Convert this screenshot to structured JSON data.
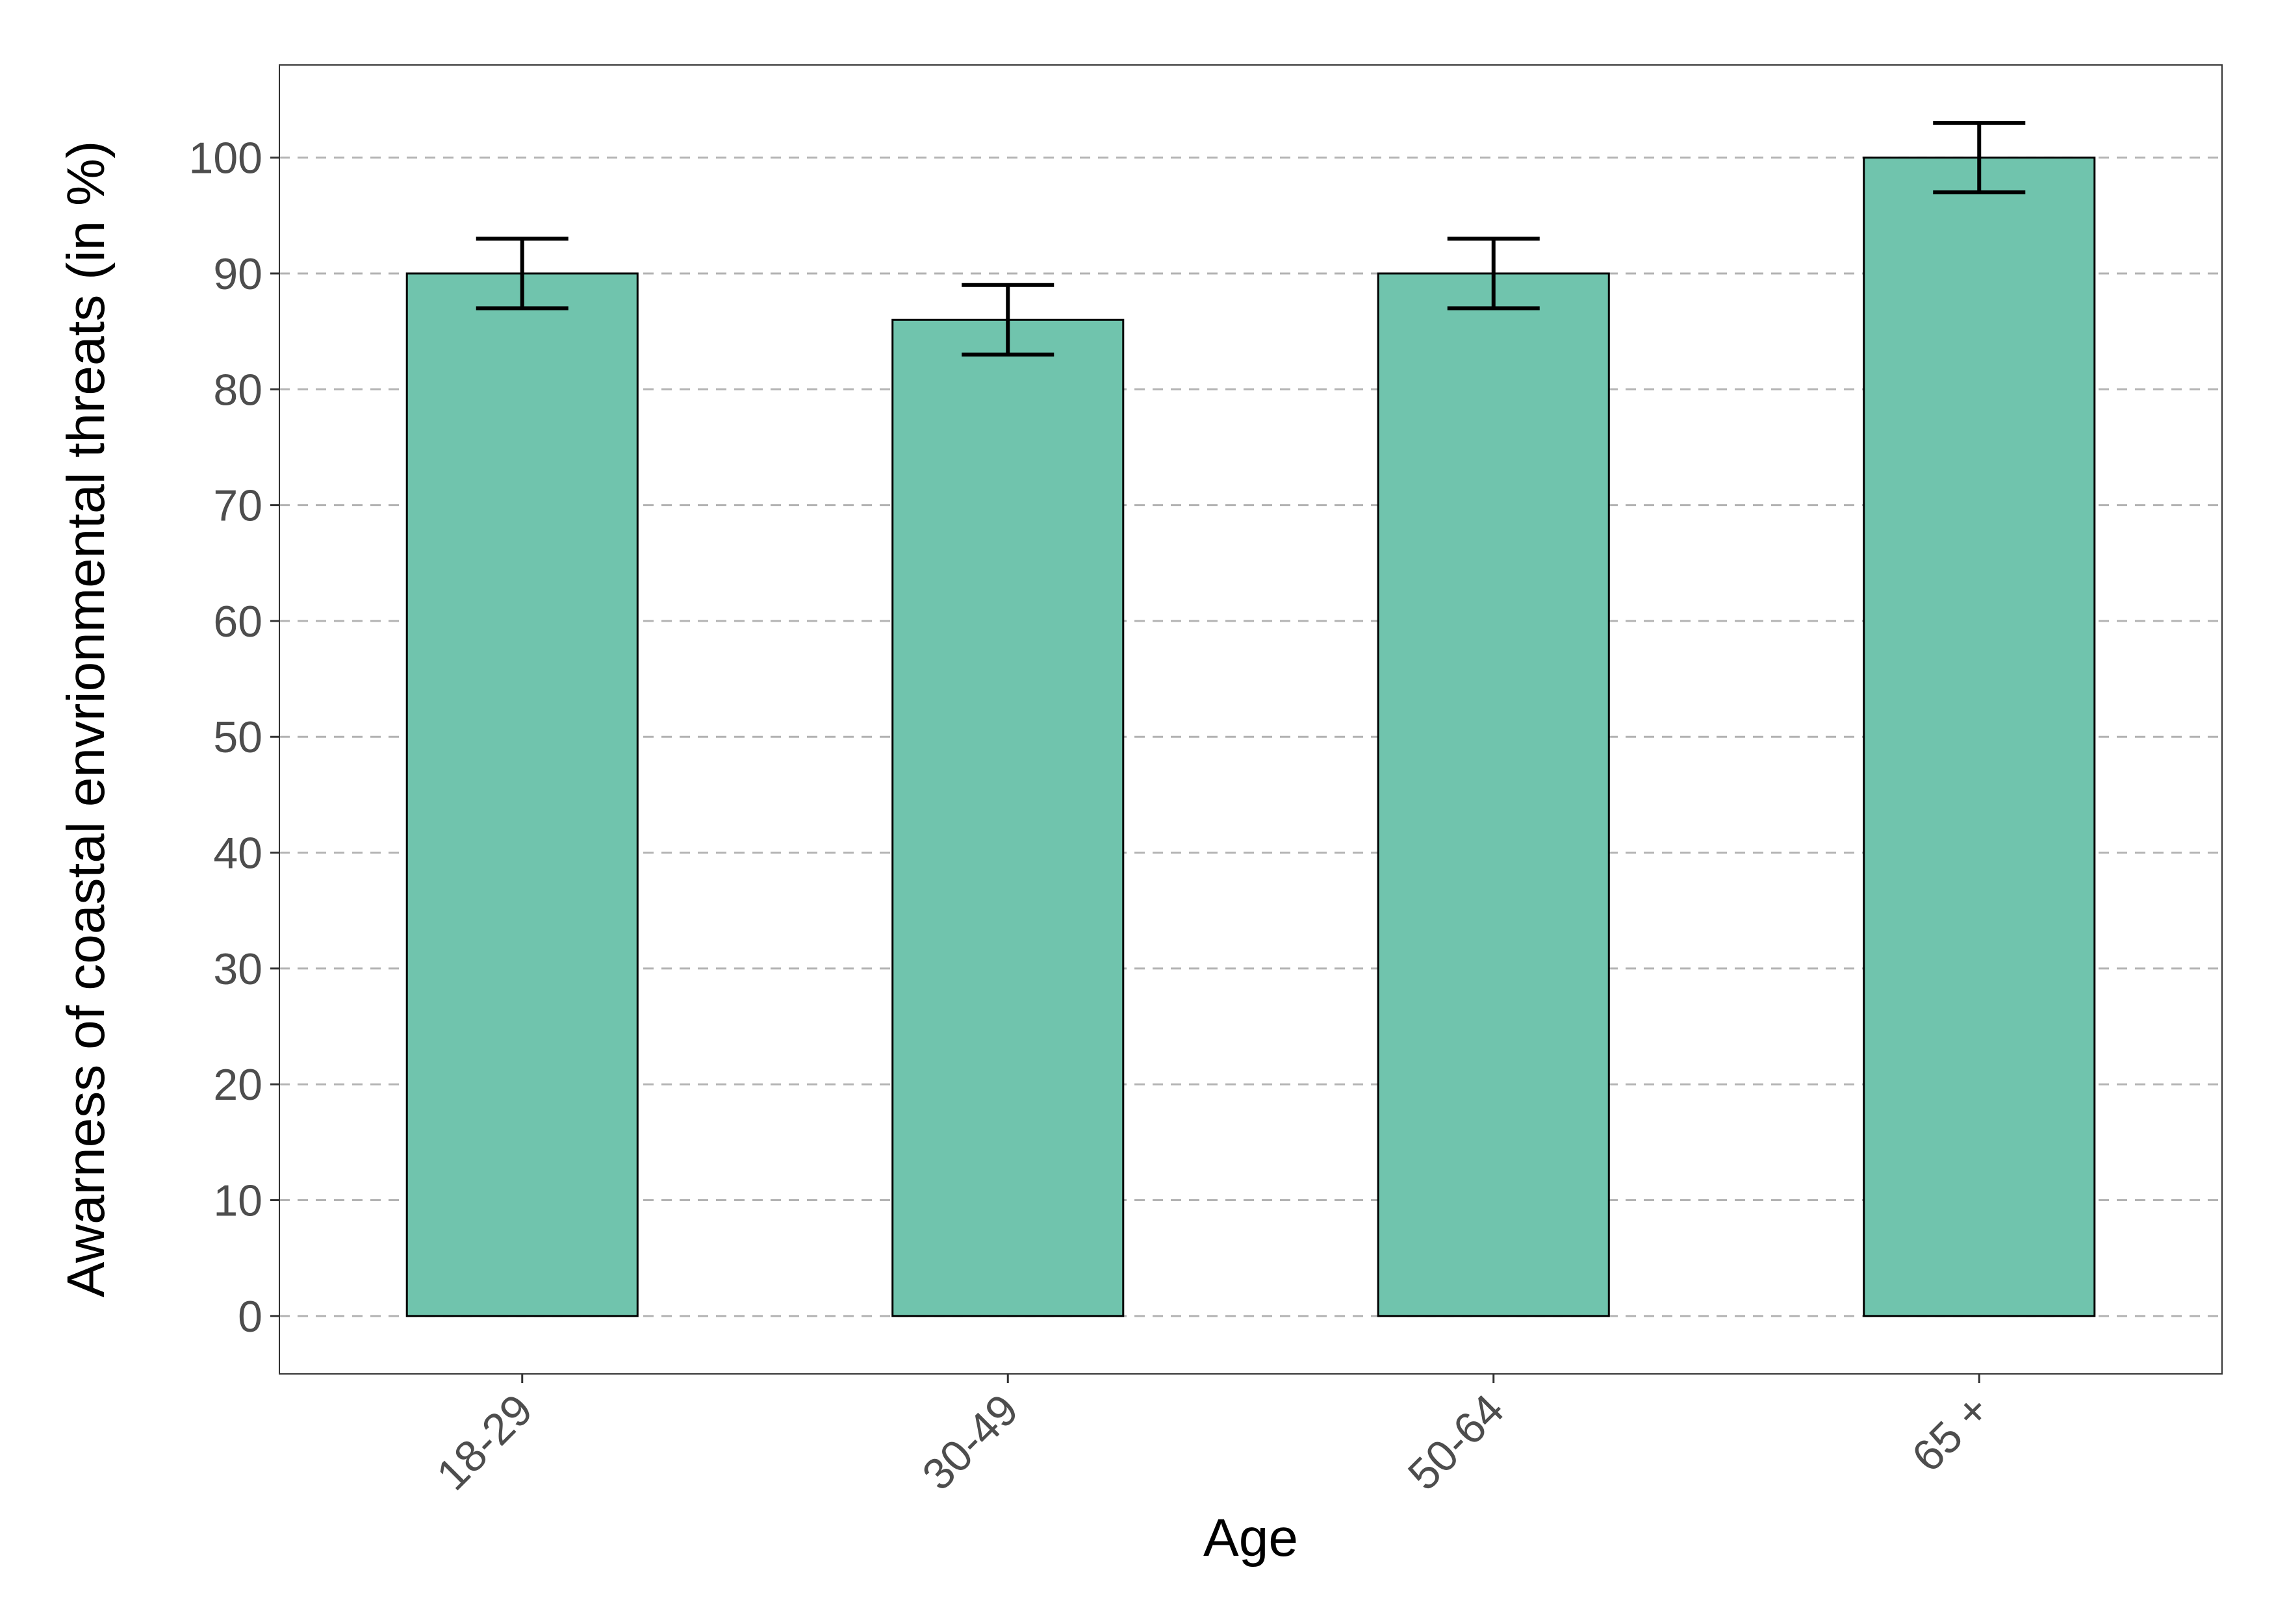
{
  "chart_data": {
    "type": "bar",
    "title": "",
    "xlabel": "Age",
    "ylabel": "Awarness of coastal envrionmental threats (in %)",
    "categories": [
      "18-29",
      "30-49",
      "50-64",
      "65 +"
    ],
    "values": [
      90,
      86,
      90,
      100
    ],
    "error_low": [
      87,
      83,
      87,
      97
    ],
    "error_high": [
      93,
      89,
      93,
      103
    ],
    "ylim": [
      -5,
      108
    ],
    "yticks": [
      "0",
      "10",
      "20",
      "30",
      "40",
      "50",
      "60",
      "70",
      "80",
      "90",
      "100"
    ],
    "grid": "horizontal dashed",
    "legend": "none",
    "colors": {
      "bar_fill": "#70c4ad",
      "bar_stroke": "#000000",
      "error_bar": "#000000",
      "grid": "#b3b3b3"
    }
  }
}
